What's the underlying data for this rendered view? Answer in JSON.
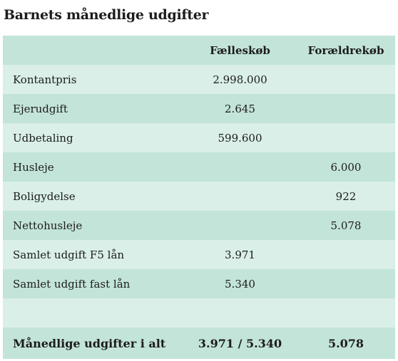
{
  "title": "Barnets månedlige udgifter",
  "colors": {
    "row_dark": "#c3e4d8",
    "row_light": "#d9efe7"
  },
  "table": {
    "headers": [
      "",
      "Fælleskøb",
      "Forældrekøb"
    ],
    "rows": [
      {
        "label": "Kontantpris",
        "faelleskoeb": "2.998.000",
        "foraeldrekoeb": ""
      },
      {
        "label": "Ejerudgift",
        "faelleskoeb": "2.645",
        "foraeldrekoeb": ""
      },
      {
        "label": "Udbetaling",
        "faelleskoeb": "599.600",
        "foraeldrekoeb": ""
      },
      {
        "label": "Husleje",
        "faelleskoeb": "",
        "foraeldrekoeb": "6.000"
      },
      {
        "label": "Boligydelse",
        "faelleskoeb": "",
        "foraeldrekoeb": "922"
      },
      {
        "label": "Nettohusleje",
        "faelleskoeb": "",
        "foraeldrekoeb": "5.078"
      },
      {
        "label": "Samlet udgift F5 lån",
        "faelleskoeb": "3.971",
        "foraeldrekoeb": ""
      },
      {
        "label": "Samlet udgift fast lån",
        "faelleskoeb": "5.340",
        "foraeldrekoeb": ""
      },
      {
        "label": "",
        "faelleskoeb": "",
        "foraeldrekoeb": ""
      }
    ],
    "total": {
      "label": "Månedlige udgifter i alt",
      "faelleskoeb": "3.971 / 5.340",
      "foraeldrekoeb": "5.078"
    }
  }
}
